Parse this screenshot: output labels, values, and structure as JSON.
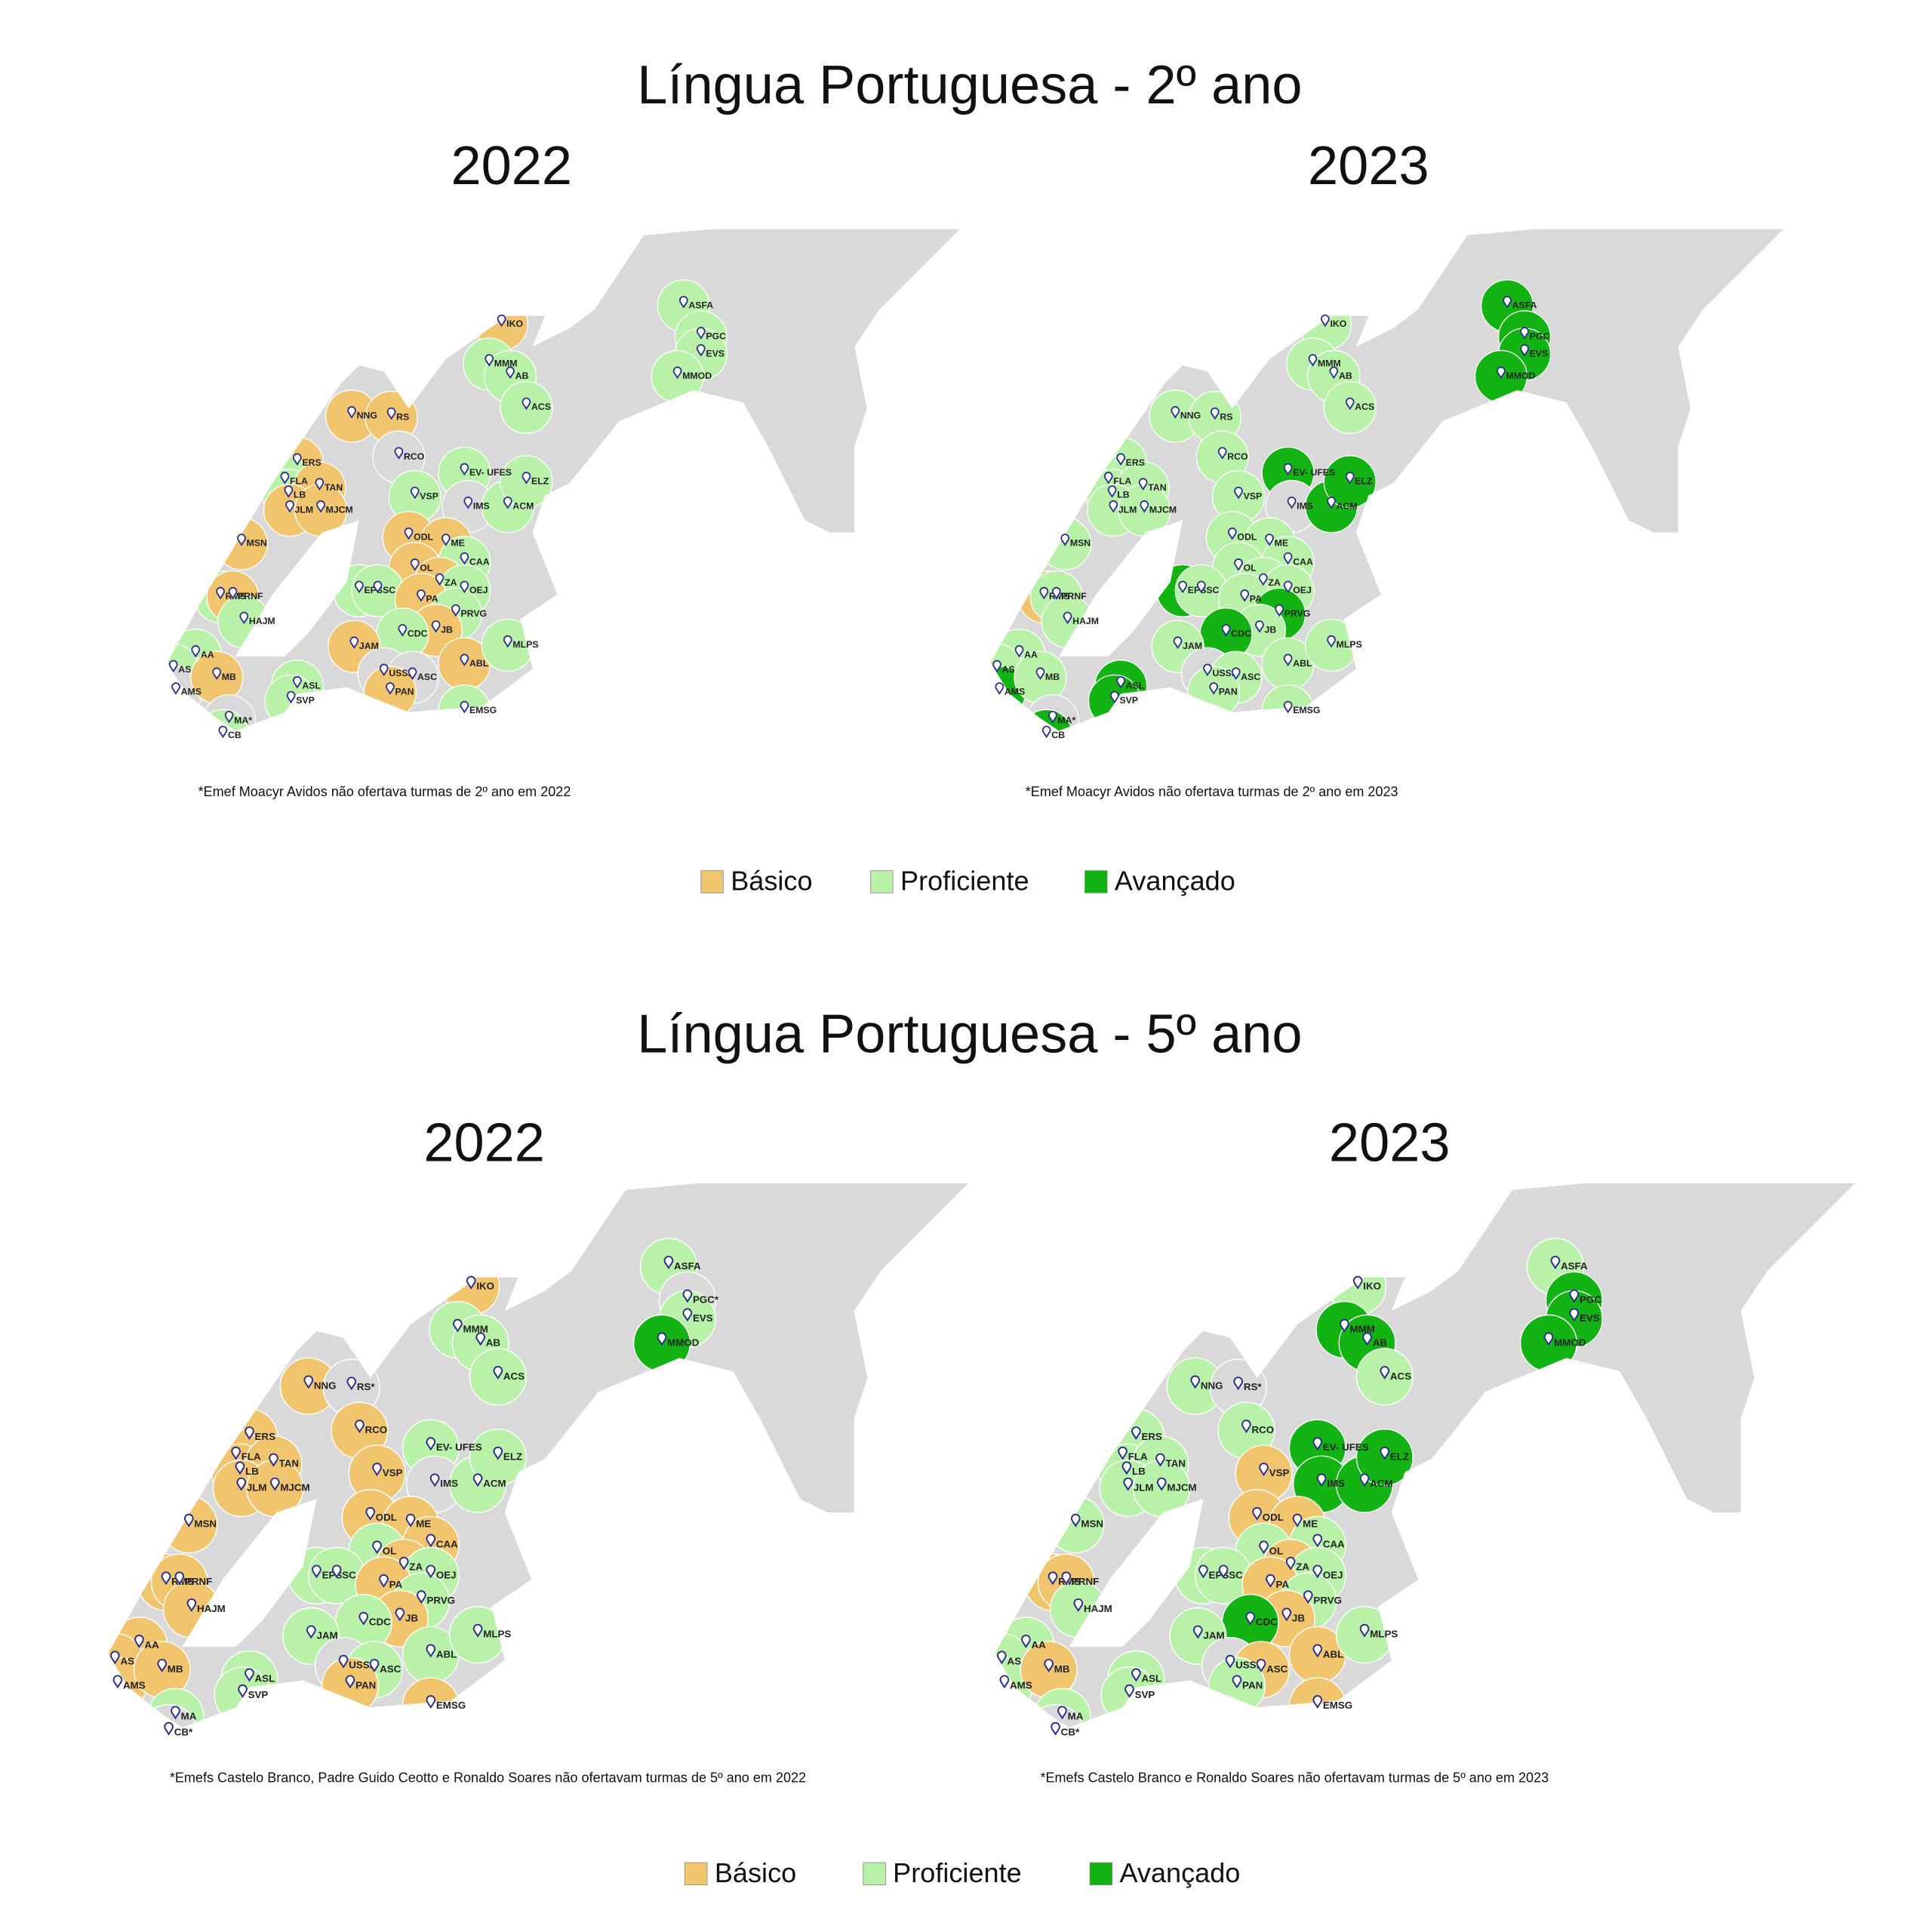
{
  "sections": [
    {
      "title": "Língua Portuguesa - 2º ano",
      "legend": [
        {
          "label": "Básico",
          "color": "#f1c56e"
        },
        {
          "label": "Proficiente",
          "color": "#b7f2a8"
        },
        {
          "label": "Avançado",
          "color": "#12b312"
        }
      ],
      "maps": [
        {
          "year": "2022",
          "note": "*Emef Moacyr Avidos não ofertava turmas de 2º ano em 2022",
          "schools": [
            "IKO",
            "MMM",
            "AB",
            "ACS",
            "ASFA",
            "PGC",
            "EVS",
            "MMOD",
            "NNG",
            "RS",
            "RCO",
            "ERS",
            "FLA",
            "LB",
            "TAN",
            "JLM",
            "MJCM",
            "EV- UFES",
            "VSP",
            "IMS",
            "ACM",
            "ELZ",
            "ODL",
            "ME",
            "CAA",
            "OL",
            "EPS",
            "SC",
            "ZA",
            "OEJ",
            "PA",
            "PRVG",
            "JB",
            "CDC",
            "MSN",
            "RMS",
            "PRNF",
            "HAJM",
            "AA",
            "AS",
            "AMS",
            "MB",
            "JAM",
            "USSL",
            "ASC",
            "ABL",
            "PAN",
            "EMSG",
            "MLPS",
            "ASL",
            "SVP",
            "MA*",
            "CB"
          ],
          "levels": [
            "Básico",
            "Proficiente",
            "Proficiente",
            "Proficiente",
            "Proficiente",
            "Proficiente",
            "Proficiente",
            "Proficiente",
            "Básico",
            "Básico",
            null,
            "Básico",
            "Proficiente",
            "Proficiente",
            "Básico",
            "Básico",
            "Básico",
            "Proficiente",
            "Proficiente",
            null,
            "Proficiente",
            "Proficiente",
            "Básico",
            "Básico",
            "Proficiente",
            "Básico",
            "Proficiente",
            "Proficiente",
            "Básico",
            "Proficiente",
            "Básico",
            "Proficiente",
            "Básico",
            "Proficiente",
            "Básico",
            "Proficiente",
            "Básico",
            "Proficiente",
            "Proficiente",
            "Proficiente",
            null,
            "Básico",
            "Básico",
            null,
            null,
            "Básico",
            "Básico",
            "Proficiente",
            "Proficiente",
            "Proficiente",
            "Proficiente",
            null,
            "Proficiente"
          ]
        },
        {
          "year": "2023",
          "note": "*Emef Moacyr Avidos não ofertava turmas de 2º ano em 2023",
          "schools": [
            "IKO",
            "MMM",
            "AB",
            "ACS",
            "ASFA",
            "PGC",
            "EVS",
            "MMOD",
            "NNG",
            "RS",
            "RCO",
            "ERS",
            "FLA",
            "LB",
            "TAN",
            "JLM",
            "MJCM",
            "EV- UFES",
            "VSP",
            "IMS",
            "ACM",
            "ELZ",
            "ODL",
            "ME",
            "CAA",
            "OL",
            "EPS",
            "SC",
            "ZA",
            "OEJ",
            "PA",
            "PRVG",
            "JB",
            "CDC",
            "MSN",
            "RMS",
            "PRNF",
            "HAJM",
            "AA",
            "AS",
            "AMS",
            "MB",
            "JAM",
            "USSL",
            "ASC",
            "ABL",
            "PAN",
            "EMSG",
            "MLPS",
            "ASL",
            "SVP",
            "MA*",
            "CB"
          ],
          "levels": [
            "Proficiente",
            "Proficiente",
            "Proficiente",
            "Proficiente",
            "Avançado",
            "Avançado",
            "Avançado",
            "Avançado",
            "Proficiente",
            "Proficiente",
            "Proficiente",
            "Proficiente",
            "Proficiente",
            "Proficiente",
            "Proficiente",
            "Proficiente",
            "Proficiente",
            "Avançado",
            "Proficiente",
            null,
            "Avançado",
            "Avançado",
            "Proficiente",
            "Proficiente",
            "Proficiente",
            "Proficiente",
            "Avançado",
            "Proficiente",
            "Proficiente",
            "Proficiente",
            "Proficiente",
            "Avançado",
            "Proficiente",
            "Avançado",
            "Proficiente",
            "Básico",
            "Proficiente",
            "Proficiente",
            "Proficiente",
            "Proficiente",
            "Avançado",
            "Proficiente",
            "Proficiente",
            null,
            "Proficiente",
            "Proficiente",
            "Proficiente",
            "Proficiente",
            "Proficiente",
            "Avançado",
            "Avançado",
            null,
            "Avançado"
          ]
        }
      ]
    },
    {
      "title": "Língua Portuguesa - 5º ano",
      "legend": [
        {
          "label": "Básico",
          "color": "#f1c56e"
        },
        {
          "label": "Proficiente",
          "color": "#b7f2a8"
        },
        {
          "label": "Avançado",
          "color": "#12b312"
        }
      ],
      "maps": [
        {
          "year": "2022",
          "note": "*Emefs Castelo Branco, Padre Guido Ceotto e Ronaldo Soares não ofertavam turmas de 5º ano em 2022",
          "schools": [
            "IKO",
            "MMM",
            "AB",
            "ACS",
            "ASFA",
            "PGC*",
            "EVS",
            "MMOD",
            "NNG",
            "RS*",
            "RCO",
            "ERS",
            "FLA",
            "LB",
            "TAN",
            "JLM",
            "MJCM",
            "EV- UFES",
            "VSP",
            "IMS",
            "ACM",
            "ELZ",
            "ODL",
            "ME",
            "CAA",
            "OL",
            "EPS",
            "SC",
            "ZA",
            "OEJ",
            "PA",
            "PRVG",
            "JB",
            "CDC",
            "MSN",
            "RMS",
            "PRNF",
            "HAJM",
            "AA",
            "AS",
            "AMS",
            "MB",
            "JAM",
            "USSL",
            "ASC",
            "ABL",
            "PAN",
            "EMSG",
            "MLPS",
            "ASL",
            "SVP",
            "MA",
            "CB*"
          ],
          "levels": [
            "Básico",
            "Proficiente",
            "Proficiente",
            "Proficiente",
            "Proficiente",
            null,
            "Proficiente",
            "Avançado",
            "Básico",
            null,
            "Básico",
            "Básico",
            "Básico",
            "Básico",
            "Básico",
            "Básico",
            "Básico",
            "Proficiente",
            "Básico",
            null,
            "Proficiente",
            "Proficiente",
            "Básico",
            "Básico",
            "Básico",
            "Proficiente",
            "Proficiente",
            "Proficiente",
            "Básico",
            "Proficiente",
            "Básico",
            "Proficiente",
            "Básico",
            "Proficiente",
            "Básico",
            "Básico",
            "Básico",
            "Básico",
            "Básico",
            "Básico",
            "Básico",
            "Básico",
            "Proficiente",
            null,
            "Proficiente",
            "Proficiente",
            "Básico",
            "Básico",
            "Proficiente",
            "Proficiente",
            "Proficiente",
            "Proficiente",
            null
          ]
        },
        {
          "year": "2023",
          "note": "*Emefs Castelo Branco e Ronaldo Soares não ofertavam turmas de 5º ano em 2023",
          "schools": [
            "IKO",
            "MMM",
            "AB",
            "ACS",
            "ASFA",
            "PGC",
            "EVS",
            "MMOD",
            "NNG",
            "RS*",
            "RCO",
            "ERS",
            "FLA",
            "LB",
            "TAN",
            "JLM",
            "MJCM",
            "EV- UFES",
            "VSP",
            "IMS",
            "ACM",
            "ELZ",
            "ODL",
            "ME",
            "CAA",
            "OL",
            "EPS",
            "SC",
            "ZA",
            "OEJ",
            "PA",
            "PRVG",
            "JB",
            "CDC",
            "MSN",
            "RMS",
            "PRNF",
            "HAJM",
            "AA",
            "AS",
            "AMS",
            "MB",
            "JAM",
            "USSL",
            "ASC",
            "ABL",
            "PAN",
            "EMSG",
            "MLPS",
            "ASL",
            "SVP",
            "MA",
            "CB*"
          ],
          "levels": [
            "Proficiente",
            "Avançado",
            "Avançado",
            "Proficiente",
            "Proficiente",
            "Avançado",
            "Avançado",
            "Avançado",
            "Proficiente",
            null,
            "Proficiente",
            "Proficiente",
            "Proficiente",
            "Proficiente",
            "Proficiente",
            "Proficiente",
            "Proficiente",
            "Avançado",
            "Básico",
            "Avançado",
            "Avançado",
            "Avançado",
            "Básico",
            "Básico",
            "Proficiente",
            "Proficiente",
            "Proficiente",
            "Proficiente",
            "Básico",
            "Proficiente",
            "Básico",
            "Proficiente",
            "Básico",
            "Avançado",
            "Proficiente",
            "Básico",
            "Básico",
            "Proficiente",
            "Proficiente",
            "Proficiente",
            "Proficiente",
            "Básico",
            "Proficiente",
            null,
            "Básico",
            "Básico",
            "Proficiente",
            "Básico",
            "Proficiente",
            "Proficiente",
            "Proficiente",
            "Proficiente",
            null
          ]
        }
      ]
    }
  ]
}
